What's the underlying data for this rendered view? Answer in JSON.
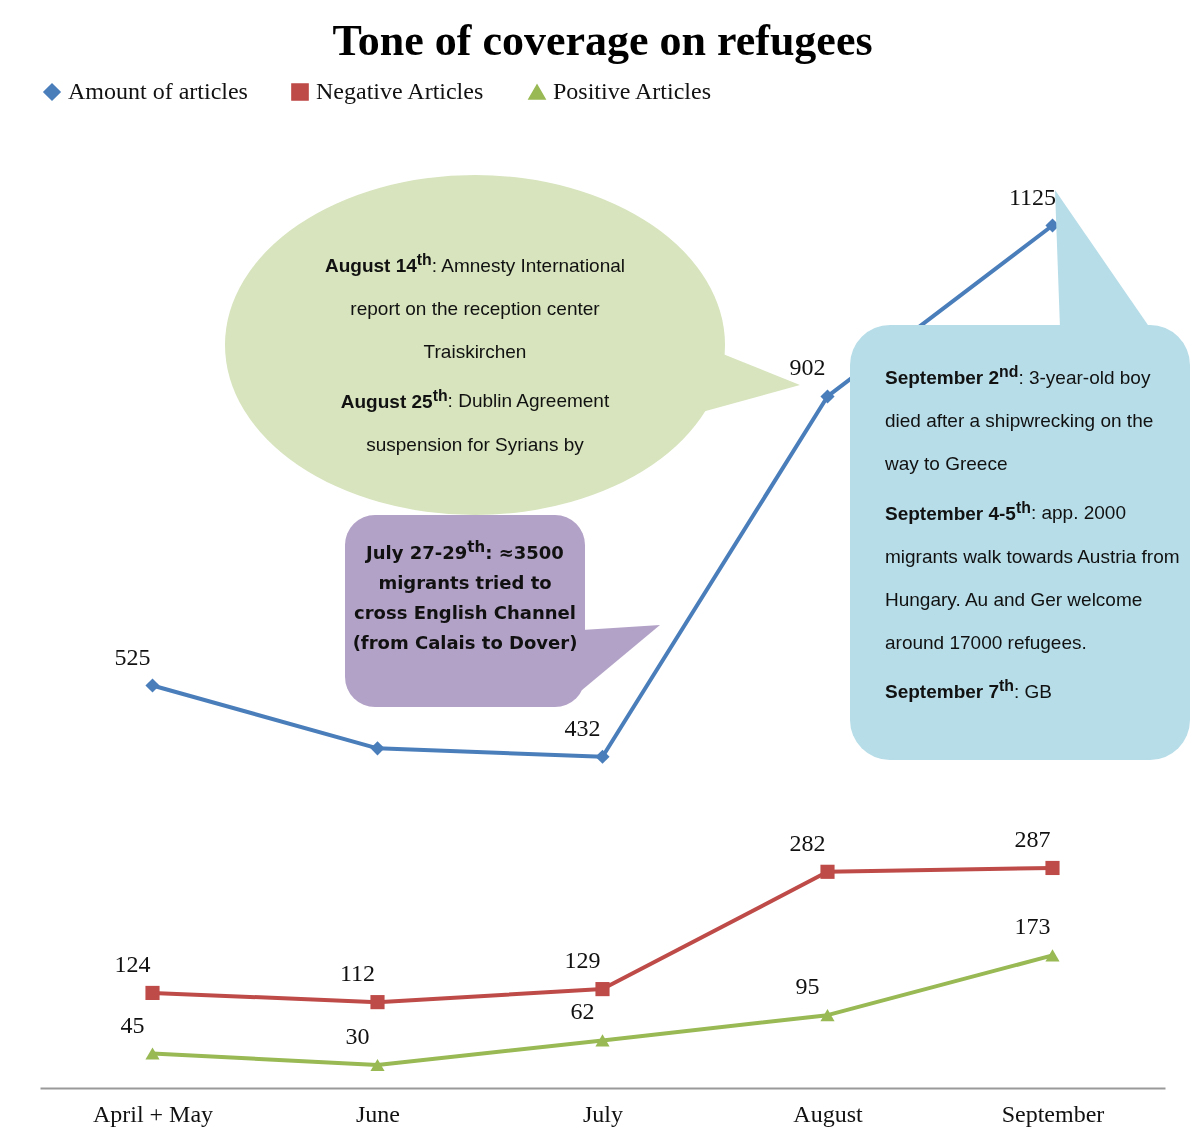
{
  "chart_data": {
    "type": "line",
    "title": "Tone of coverage on refugees",
    "categories": [
      "April + May",
      "June",
      "July",
      "August",
      "September"
    ],
    "legend": "top",
    "grid": false,
    "series": [
      {
        "name": "Amount of articles",
        "color": "#4a7ebb",
        "marker": "diamond",
        "values": [
          525,
          443,
          432,
          902,
          1125
        ],
        "value_labels": [
          "525",
          null,
          "432",
          "902",
          "1125"
        ]
      },
      {
        "name": "Negative Articles",
        "color": "#be4b48",
        "marker": "square",
        "values": [
          124,
          112,
          129,
          282,
          287
        ],
        "value_labels": [
          "124",
          "112",
          "129",
          "282",
          "287"
        ]
      },
      {
        "name": "Positive Articles",
        "color": "#98b954",
        "marker": "triangle",
        "values": [
          45,
          30,
          62,
          95,
          173
        ],
        "value_labels": [
          "45",
          "30",
          "62",
          "95",
          "173"
        ]
      }
    ],
    "annotations": [
      "August 14$^{th}$: Amnesty International report on the reception center Traiskirchen",
      "August 25$^{th}$: Dublin Agreement suspension for Syrians by",
      "September 2$^{nd}$: 3-year-old boy died after a shipwrecking on the way to Greece",
      "September 4-5$^{th}$: app. 2000 migrants walk towards Austria from Hungary. Au and Ger welcome around 17000 refugees.",
      "September 7$^{th}$: GB",
      "July 27-29$^{th}$: ≈3500 migrants tried to cross English Channel (from Calais to Dover)"
    ]
  }
}
